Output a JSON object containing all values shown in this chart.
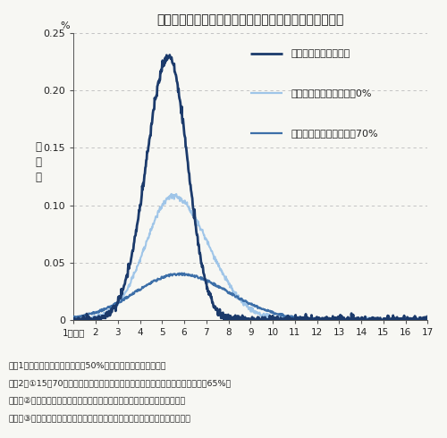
{
  "title": "接触確認アプリ導入時と無対策時の新規感染者数の比較",
  "ylabel_top": "%",
  "ylim": [
    0,
    0.25
  ],
  "yticks": [
    0,
    0.05,
    0.1,
    0.15,
    0.2,
    0.25
  ],
  "ytick_labels": [
    "0",
    "0.05",
    "0.10",
    "0.15",
    "0.20",
    "0.25"
  ],
  "xlim": [
    1,
    17
  ],
  "xtick_labels": [
    "1カ月目",
    "2",
    "3",
    "4",
    "5",
    "6",
    "7",
    "8",
    "9",
    "10",
    "11",
    "12",
    "13",
    "14",
    "15",
    "16",
    "17"
  ],
  "xtick_values": [
    1,
    2,
    3,
    4,
    5,
    6,
    7,
    8,
    9,
    10,
    11,
    12,
    13,
    14,
    15,
    16,
    17
  ],
  "legend": [
    {
      "label": "検査なし、アプリなし",
      "color": "#1b3a6b",
      "linewidth": 2.0
    },
    {
      "label": "検査あり、アプリ導入率0%",
      "color": "#9fc5e8",
      "linewidth": 1.6
    },
    {
      "label": "検査あり、アプリ導入率70%",
      "color": "#3d6fa8",
      "linewidth": 1.6
    }
  ],
  "footnotes": [
    "（注1）「検査あり」は有症者の50%を毎日ランダムに検査する",
    "（注2）①15～70歳の全員がスマホを保有している（合成データ上の人口比は約65%）",
    "　　　②アプリ導入率はスマホ保有者に占めるアプリダウンロード者の割合",
    "　　　③アプリで通知を受けた接触者は検査を受診し陽性となれば隔離される"
  ],
  "series1_color": "#1b3a6b",
  "series2_color": "#9fc5e8",
  "series3_color": "#3d6fa8",
  "background_color": "#f7f7f3",
  "grid_color": "#bbbbbb"
}
